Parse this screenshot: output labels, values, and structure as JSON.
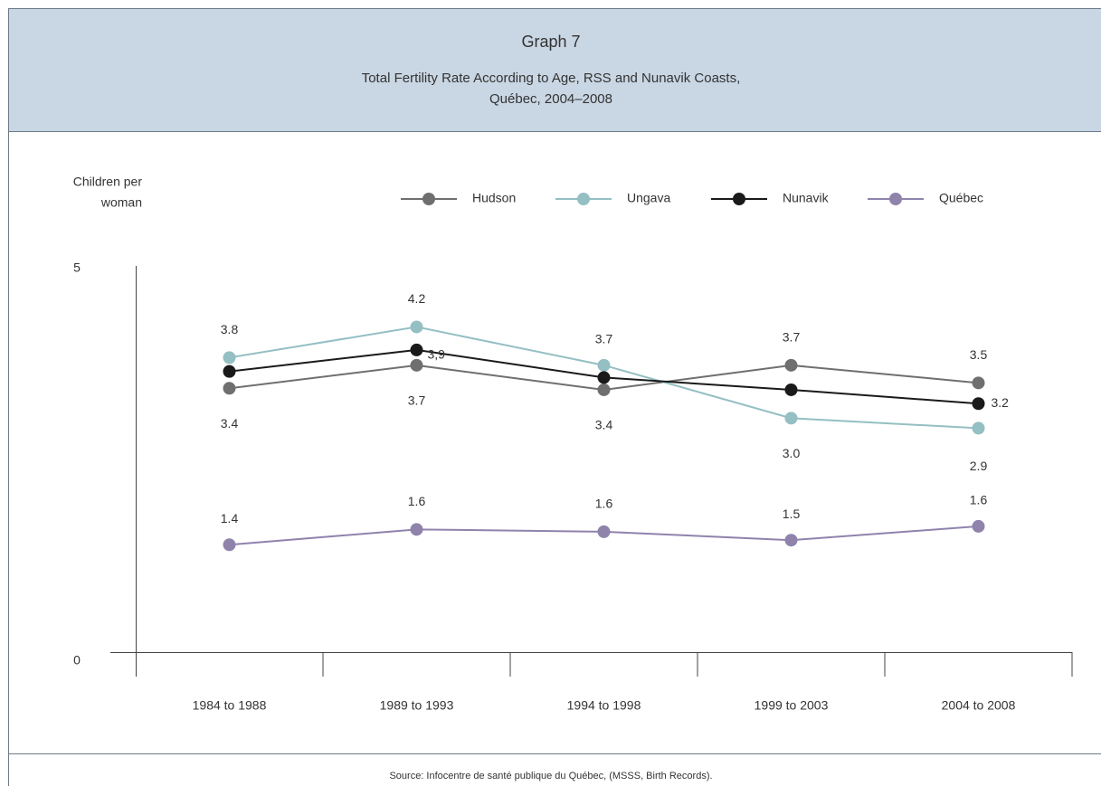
{
  "chart_data": {
    "type": "line",
    "title": "Graph 7",
    "subtitle": [
      "Total Fertility Rate According to Age, RSS and Nunavik Coasts,",
      "Québec, 2004–2008"
    ],
    "ylabel": [
      "Children per",
      "woman"
    ],
    "source": "Source: Infocentre de santé publique du Québec, (MSSS, Birth Records).",
    "categories": [
      "1984 to 1988",
      "1989 to 1993",
      "1994 to 1998",
      "1999 to 2003",
      "2004 to 2008"
    ],
    "ylim": [
      0,
      5
    ],
    "yticks": [
      0,
      5
    ],
    "series": [
      {
        "name": "Hudson",
        "color": "#6f6f6f",
        "values": [
          3.44,
          3.74,
          3.42,
          3.74,
          3.51
        ],
        "value_labels": [
          "3.4",
          "3.7",
          "3.4",
          "3.7",
          "3.5"
        ]
      },
      {
        "name": "Ungava",
        "color": "#94bfc3",
        "values": [
          3.84,
          4.24,
          3.74,
          3.05,
          2.92
        ],
        "value_labels": [
          "3.8",
          "4.2",
          "3.7",
          "3.0",
          "2.9"
        ]
      },
      {
        "name": "Nunavik",
        "color": "#1a1a1a",
        "values": [
          3.66,
          3.94,
          3.58,
          3.42,
          3.24
        ],
        "value_labels": [
          null,
          "3,9",
          null,
          null,
          "3.2"
        ]
      },
      {
        "name": "Québec",
        "color": "#8f83ac",
        "values": [
          1.4,
          1.6,
          1.57,
          1.46,
          1.64
        ],
        "value_labels": [
          "1.4",
          "1.6",
          "1.6",
          "1.5",
          "1.6"
        ]
      }
    ]
  }
}
